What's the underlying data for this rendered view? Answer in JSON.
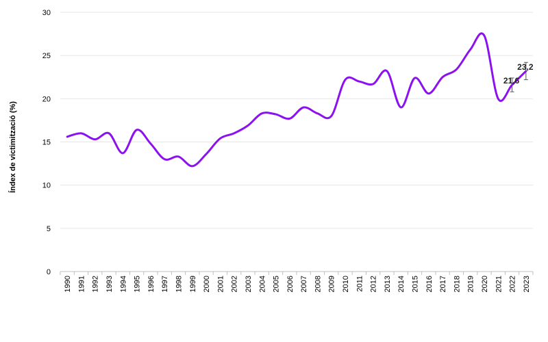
{
  "chart_data": {
    "type": "line",
    "title": "",
    "xlabel": "",
    "ylabel": "Índex de victimització (%)",
    "ylim": [
      0,
      30
    ],
    "yticks": [
      "0",
      "5",
      "10",
      "15",
      "20",
      "25",
      "30"
    ],
    "grid": true,
    "legend": "none",
    "line_color": "#8B12EE",
    "categories": [
      "1990",
      "1991",
      "1992",
      "1993",
      "1994",
      "1995",
      "1996",
      "1997",
      "1998",
      "1999",
      "2000",
      "2001",
      "2002",
      "2003",
      "2004",
      "2005",
      "2006",
      "2007",
      "2008",
      "2009",
      "2010",
      "2011",
      "2012",
      "2013",
      "2014",
      "2015",
      "2016",
      "2017",
      "2018",
      "2019",
      "2020",
      "2021",
      "2022",
      "2023"
    ],
    "values": [
      15.6,
      16.0,
      15.3,
      16.0,
      13.7,
      16.4,
      14.8,
      13.0,
      13.3,
      12.2,
      13.6,
      15.4,
      16.0,
      16.9,
      18.3,
      18.2,
      17.7,
      19.0,
      18.3,
      18.0,
      22.2,
      22.0,
      21.7,
      23.2,
      19.0,
      22.4,
      20.6,
      22.5,
      23.4,
      25.7,
      27.3,
      20.0,
      21.6,
      23.2
    ],
    "error_bars": [
      {
        "x": "2022",
        "low": 20.8,
        "high": 22.4
      },
      {
        "x": "2023",
        "low": 22.2,
        "high": 24.2
      }
    ],
    "data_labels": [
      {
        "x": "2022",
        "text": "21,6"
      },
      {
        "x": "2023",
        "text": "23,2"
      }
    ]
  }
}
